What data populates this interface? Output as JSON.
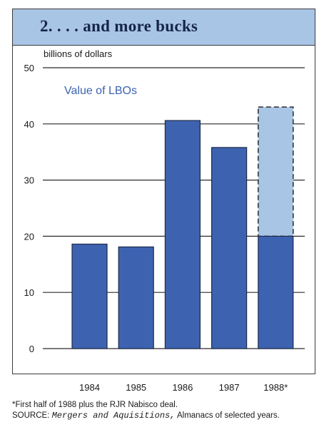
{
  "header": {
    "title": "2. . . . and more bucks"
  },
  "chart_data": {
    "type": "bar",
    "unit_label": "billions of dollars",
    "series_label": "Value of LBOs",
    "categories": [
      "1984",
      "1985",
      "1986",
      "1987",
      "1988*"
    ],
    "values": [
      18.6,
      18.1,
      40.6,
      35.8,
      20.0
    ],
    "extension": {
      "category": "1988*",
      "from": 20.0,
      "to": 43.0,
      "style": "dashed-outline"
    },
    "ylim": [
      0,
      50
    ],
    "yticks": [
      "0",
      "10",
      "20",
      "30",
      "40",
      "50"
    ],
    "grid": true,
    "colors": {
      "bar": "#3d63b0",
      "bar_light": "#a9c5e6",
      "title_band": "#a9c5e6",
      "accent_text": "#3d63b0"
    }
  },
  "notes": {
    "footnote": "*First half of 1988 plus the RJR Nabisco deal.",
    "source_prefix": "SOURCE: ",
    "source_title": "Mergers and Aquisitions,",
    "source_suffix": " Almanacs of selected years."
  }
}
